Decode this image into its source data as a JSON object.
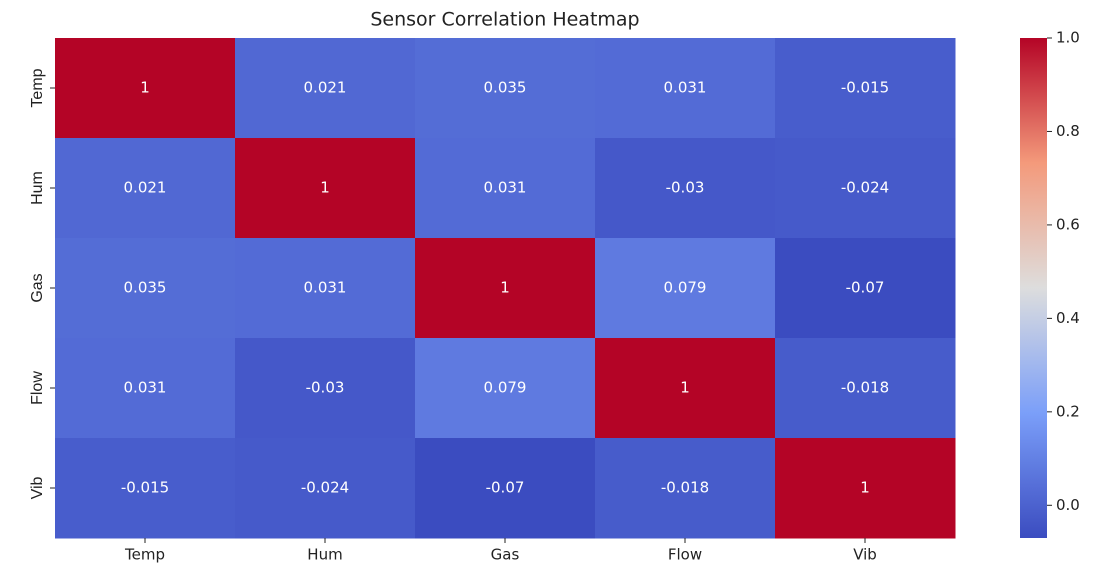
{
  "chart_data": {
    "type": "heatmap",
    "title": "Sensor Correlation Heatmap",
    "x": [
      "Temp",
      "Hum",
      "Gas",
      "Flow",
      "Vib"
    ],
    "y": [
      "Temp",
      "Hum",
      "Gas",
      "Flow",
      "Vib"
    ],
    "values": [
      [
        1,
        0.021,
        0.035,
        0.031,
        -0.015
      ],
      [
        0.021,
        1,
        0.031,
        -0.03,
        -0.024
      ],
      [
        0.035,
        0.031,
        1,
        0.079,
        -0.07
      ],
      [
        0.031,
        -0.03,
        0.079,
        1,
        -0.018
      ],
      [
        -0.015,
        -0.024,
        -0.07,
        -0.018,
        1
      ]
    ],
    "colormap": "coolwarm",
    "zlim": [
      -0.07,
      1
    ],
    "zticks": [
      {
        "value": 0,
        "label": "0.0"
      },
      0.2,
      0.4,
      0.6,
      0.8,
      {
        "value": 1,
        "label": "1.0"
      }
    ]
  }
}
